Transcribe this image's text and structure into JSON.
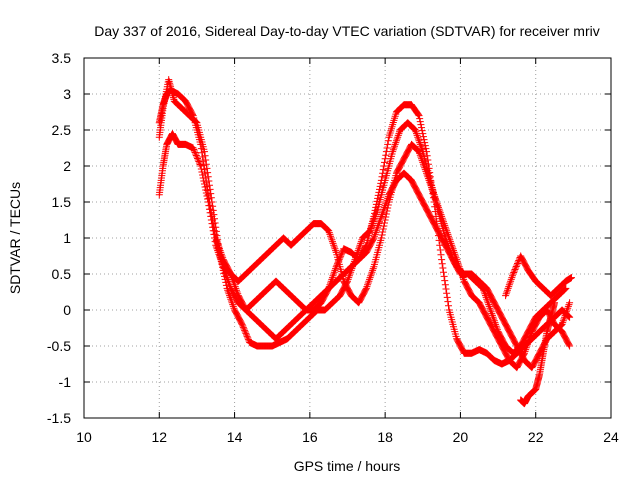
{
  "chart_data": {
    "type": "scatter",
    "title": "Day 337 of 2016, Sidereal Day-to-day VTEC variation (SDTVAR) for receiver mriv",
    "xlabel": "GPS time / hours",
    "ylabel": "SDTVAR / TECUs",
    "xlim": [
      10,
      24
    ],
    "ylim": [
      -1.5,
      3.5
    ],
    "xticks": [
      10,
      12,
      14,
      16,
      18,
      20,
      22,
      24
    ],
    "yticks": [
      -1.5,
      -1,
      -0.5,
      0,
      0.5,
      1,
      1.5,
      2,
      2.5,
      3,
      3.5
    ],
    "xtick_labels": [
      "10",
      "12",
      "14",
      "16",
      "18",
      "20",
      "22",
      "24"
    ],
    "ytick_labels": [
      "-1.5",
      "-1",
      "-0.5",
      "0",
      "0.5",
      "1",
      "1.5",
      "2",
      "2.5",
      "3",
      "3.5"
    ],
    "grid": true,
    "marker": "+",
    "color": "#ff0000",
    "series": [
      {
        "name": "s1",
        "x": [
          12.0,
          12.1,
          12.2,
          12.3,
          12.5,
          12.7,
          12.9,
          13.1,
          13.3,
          13.5,
          13.7,
          13.9,
          14.1,
          14.3,
          14.5,
          14.7,
          14.9,
          15.1,
          15.3,
          15.5,
          15.7,
          15.9,
          16.1,
          16.3,
          16.5,
          16.7,
          16.9,
          17.1,
          17.3,
          17.5,
          17.7,
          17.9,
          18.1,
          18.3,
          18.5,
          18.7,
          18.9,
          19.1,
          19.3,
          19.5,
          19.7,
          19.9,
          20.1,
          20.3,
          20.5,
          20.7,
          20.9,
          21.1,
          21.3,
          21.5,
          21.7,
          21.9,
          22.1,
          22.3,
          22.5,
          22.7,
          22.9
        ],
        "y": [
          2.6,
          2.85,
          3.0,
          3.05,
          3.0,
          2.9,
          2.7,
          2.3,
          1.6,
          1.0,
          0.6,
          0.3,
          0.1,
          0.0,
          0.1,
          0.2,
          0.3,
          0.4,
          0.3,
          0.2,
          0.1,
          0.0,
          0.0,
          0.1,
          0.3,
          0.6,
          0.85,
          0.8,
          0.7,
          0.9,
          1.3,
          1.8,
          2.4,
          2.75,
          2.85,
          2.85,
          2.7,
          2.2,
          1.5,
          0.7,
          0.0,
          -0.4,
          -0.6,
          -0.6,
          -0.55,
          -0.6,
          -0.7,
          -0.75,
          -0.7,
          -0.6,
          -0.5,
          -0.4,
          -0.3,
          -0.2,
          -0.1,
          0.0,
          -0.1
        ]
      },
      {
        "name": "s2",
        "x": [
          12.0,
          12.1,
          12.25,
          12.4,
          12.6,
          12.8,
          13.0,
          13.2,
          13.4,
          13.6,
          13.8,
          14.0,
          14.2,
          14.4,
          14.6,
          14.8,
          15.0,
          15.2,
          15.4,
          15.6,
          15.8,
          16.0,
          16.2,
          16.4,
          16.6,
          16.8,
          17.0,
          17.2,
          17.4,
          17.6,
          17.8,
          18.0,
          18.2,
          18.4,
          18.6,
          18.8,
          19.0,
          19.2,
          19.4,
          19.6,
          19.8,
          20.0,
          20.2,
          20.4,
          20.6,
          20.8,
          21.0,
          21.2,
          21.4,
          21.6,
          21.8,
          22.0,
          22.2,
          22.4,
          22.6,
          22.8
        ],
        "y": [
          2.4,
          2.8,
          3.2,
          2.9,
          2.8,
          2.7,
          2.6,
          2.2,
          1.5,
          0.8,
          0.3,
          0.0,
          -0.2,
          -0.45,
          -0.5,
          -0.5,
          -0.5,
          -0.45,
          -0.4,
          -0.3,
          -0.2,
          -0.1,
          0.0,
          0.0,
          0.1,
          0.2,
          0.4,
          0.7,
          1.0,
          1.1,
          1.4,
          1.8,
          2.2,
          2.5,
          2.6,
          2.5,
          2.2,
          1.8,
          1.4,
          1.0,
          0.7,
          0.5,
          0.5,
          0.4,
          0.3,
          0.0,
          -0.3,
          -0.5,
          -0.6,
          -0.5,
          -0.3,
          -0.1,
          0.0,
          0.1,
          0.2,
          0.3
        ]
      },
      {
        "name": "s3",
        "x": [
          12.0,
          12.1,
          12.2,
          12.35,
          12.5,
          12.7,
          12.9,
          13.1,
          13.3,
          13.5,
          13.7,
          13.9,
          14.1,
          14.3,
          14.5,
          14.7,
          14.9,
          15.1,
          15.3,
          15.5,
          15.7,
          15.9,
          16.1,
          16.3,
          16.5,
          16.7,
          16.9,
          17.1,
          17.3,
          17.5,
          17.7,
          17.9,
          18.1,
          18.3,
          18.5,
          18.7,
          18.9,
          19.1,
          19.3,
          19.5,
          19.7,
          19.9,
          20.1,
          20.3,
          20.5,
          20.7,
          20.9,
          21.1,
          21.3,
          21.5,
          21.7,
          21.9,
          22.1,
          22.3,
          22.5,
          22.7,
          22.9
        ],
        "y": [
          1.6,
          2.0,
          2.3,
          2.45,
          2.3,
          2.3,
          2.25,
          2.0,
          1.5,
          0.9,
          0.6,
          0.5,
          0.4,
          0.5,
          0.6,
          0.7,
          0.8,
          0.9,
          1.0,
          0.9,
          1.0,
          1.1,
          1.2,
          1.2,
          1.1,
          0.8,
          0.4,
          0.2,
          0.1,
          0.3,
          0.6,
          1.0,
          1.5,
          1.9,
          2.1,
          2.3,
          2.2,
          1.9,
          1.6,
          1.3,
          1.0,
          0.7,
          0.4,
          0.2,
          0.1,
          -0.1,
          -0.3,
          -0.5,
          -0.7,
          -0.8,
          -0.6,
          -0.3,
          -0.1,
          0.0,
          -0.2,
          -0.3,
          -0.5
        ]
      },
      {
        "name": "s4",
        "x": [
          13.5,
          13.7,
          13.9,
          14.1,
          14.3,
          14.5,
          14.7,
          14.9,
          15.1,
          15.3,
          15.5,
          15.7,
          15.9,
          16.1,
          16.3,
          16.5,
          16.7,
          16.9,
          17.1,
          17.3,
          17.5,
          17.7,
          17.9,
          18.1,
          18.3,
          18.5,
          18.7,
          18.9,
          19.1,
          19.3,
          19.5,
          19.7,
          19.9,
          20.1,
          20.3,
          20.5,
          20.7,
          20.9,
          21.1,
          21.3,
          21.5,
          21.7,
          21.9,
          22.1,
          22.3,
          22.5,
          22.7,
          22.9
        ],
        "y": [
          1.0,
          0.7,
          0.5,
          0.2,
          0.0,
          -0.1,
          -0.2,
          -0.3,
          -0.4,
          -0.3,
          -0.2,
          -0.1,
          0.0,
          0.1,
          0.2,
          0.3,
          0.4,
          0.5,
          0.6,
          0.7,
          0.8,
          1.0,
          1.3,
          1.6,
          1.8,
          1.9,
          1.8,
          1.6,
          1.4,
          1.2,
          1.0,
          0.8,
          0.6,
          0.5,
          0.5,
          0.4,
          0.3,
          0.1,
          -0.1,
          -0.3,
          -0.5,
          -0.7,
          -0.8,
          -0.6,
          -0.4,
          -0.3,
          -0.2,
          0.1
        ]
      },
      {
        "name": "s5",
        "x": [
          21.6,
          21.7,
          21.8,
          21.9,
          22.0,
          22.1,
          22.2,
          22.3,
          22.4,
          22.5
        ],
        "y": [
          -1.25,
          -1.3,
          -1.2,
          -1.15,
          -1.1,
          -0.9,
          -0.6,
          -0.3,
          -0.1,
          0.1
        ]
      },
      {
        "name": "s6",
        "x": [
          21.2,
          21.4,
          21.6,
          21.8,
          22.0,
          22.2,
          22.4,
          22.6,
          22.8,
          22.95
        ],
        "y": [
          0.2,
          0.5,
          0.75,
          0.55,
          0.4,
          0.3,
          0.2,
          0.3,
          0.4,
          0.45
        ]
      }
    ]
  }
}
